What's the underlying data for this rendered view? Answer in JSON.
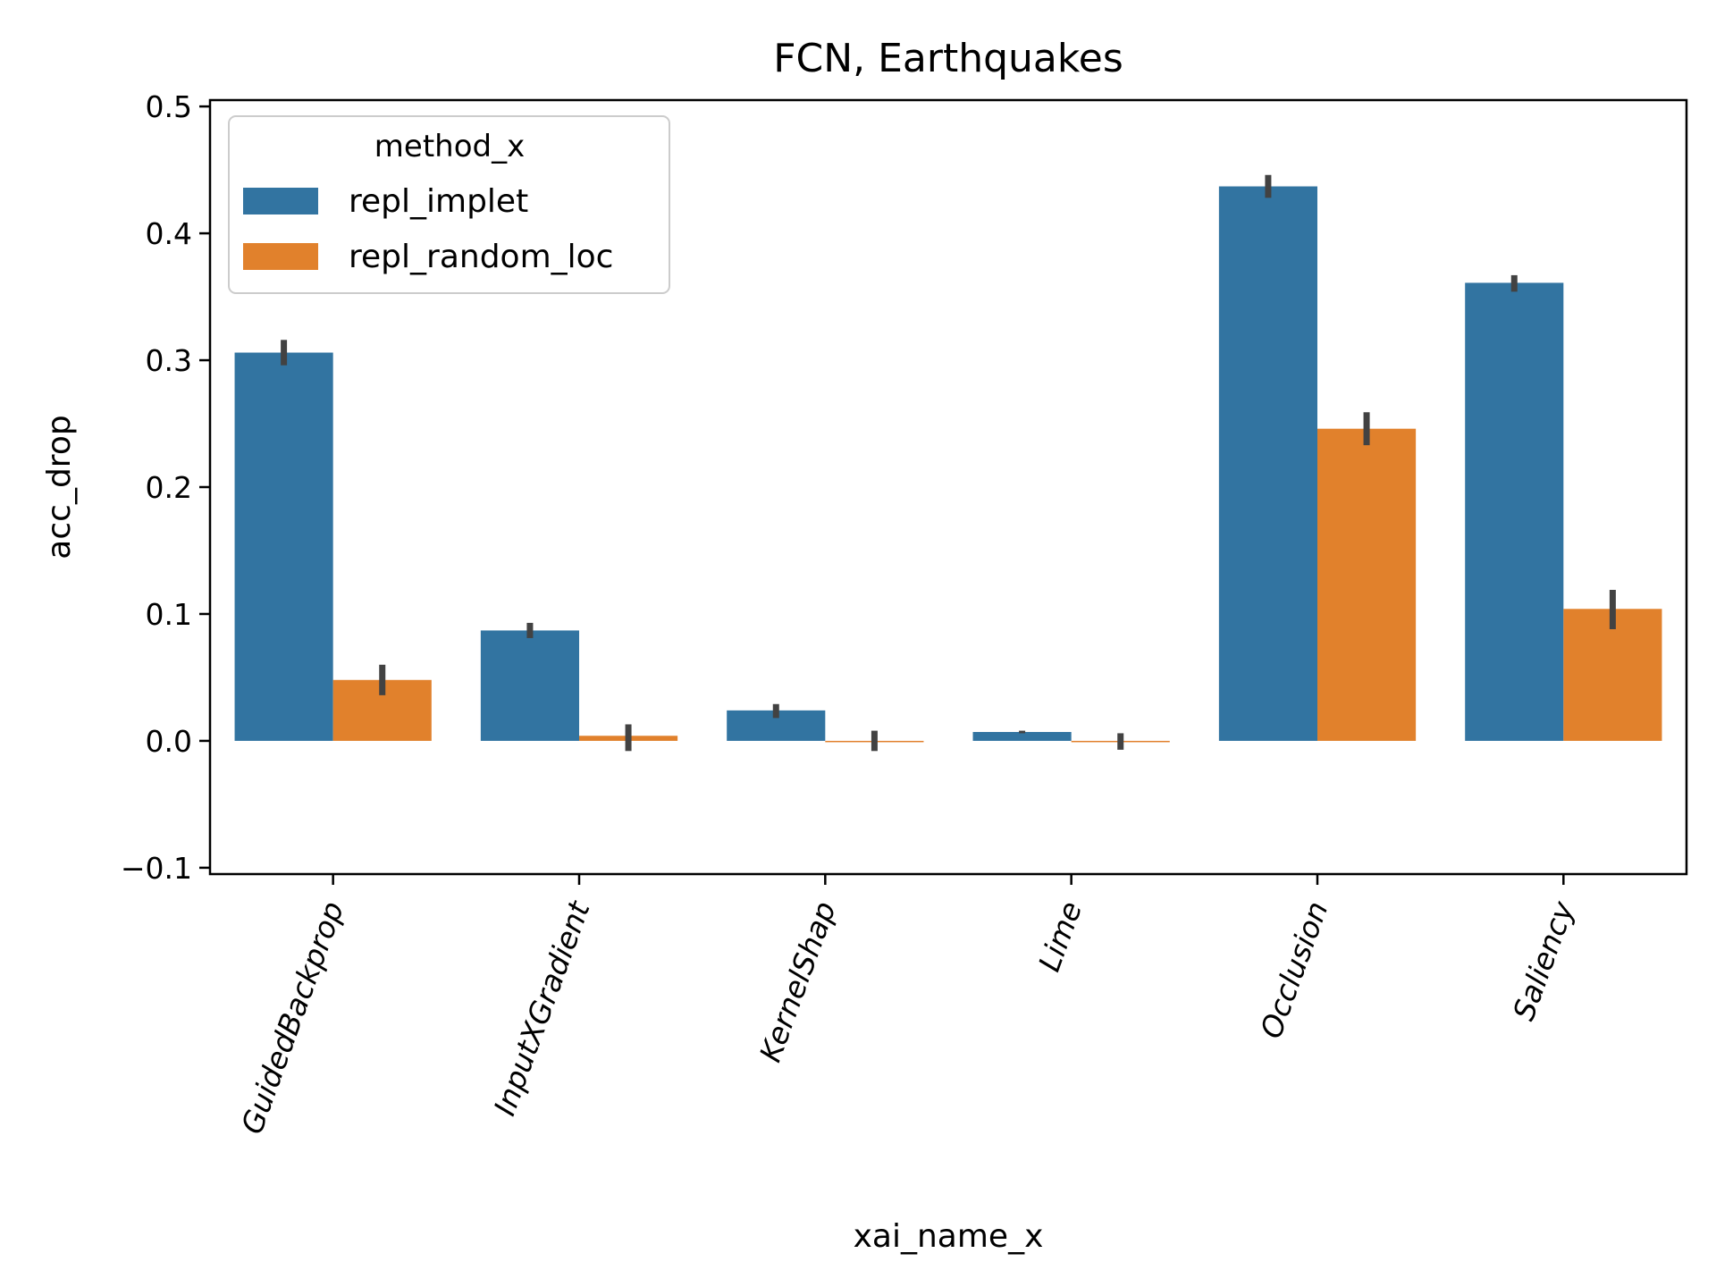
{
  "chart_data": {
    "type": "bar",
    "title": "FCN, Earthquakes",
    "xlabel": "xai_name_x",
    "ylabel": "acc_drop",
    "categories": [
      "GuidedBackprop",
      "InputXGradient",
      "KernelShap",
      "Lime",
      "Occlusion",
      "Saliency"
    ],
    "series": [
      {
        "name": "repl_implet",
        "color": "#3274a1",
        "values": [
          0.306,
          0.087,
          0.024,
          0.007,
          0.437,
          0.361
        ],
        "ci": [
          [
            0.296,
            0.316
          ],
          [
            0.081,
            0.093
          ],
          [
            0.018,
            0.029
          ],
          [
            0.006,
            0.008
          ],
          [
            0.428,
            0.446
          ],
          [
            0.354,
            0.367
          ]
        ]
      },
      {
        "name": "repl_random_loc",
        "color": "#e1812c",
        "values": [
          0.048,
          0.004,
          0.0,
          0.0,
          0.246,
          0.104
        ],
        "ci": [
          [
            0.036,
            0.06
          ],
          [
            -0.008,
            0.013
          ],
          [
            -0.008,
            0.008
          ],
          [
            -0.007,
            0.006
          ],
          [
            0.233,
            0.259
          ],
          [
            0.088,
            0.119
          ]
        ]
      }
    ],
    "yticks": [
      -0.1,
      0.0,
      0.1,
      0.2,
      0.3,
      0.4,
      0.5
    ],
    "ytick_labels": [
      "−0.1",
      "0.0",
      "0.1",
      "0.2",
      "0.3",
      "0.4",
      "0.5"
    ],
    "ylim": [
      -0.105,
      0.505
    ],
    "legend": {
      "title": "method_x",
      "placement": "top-left"
    },
    "grid": false
  }
}
